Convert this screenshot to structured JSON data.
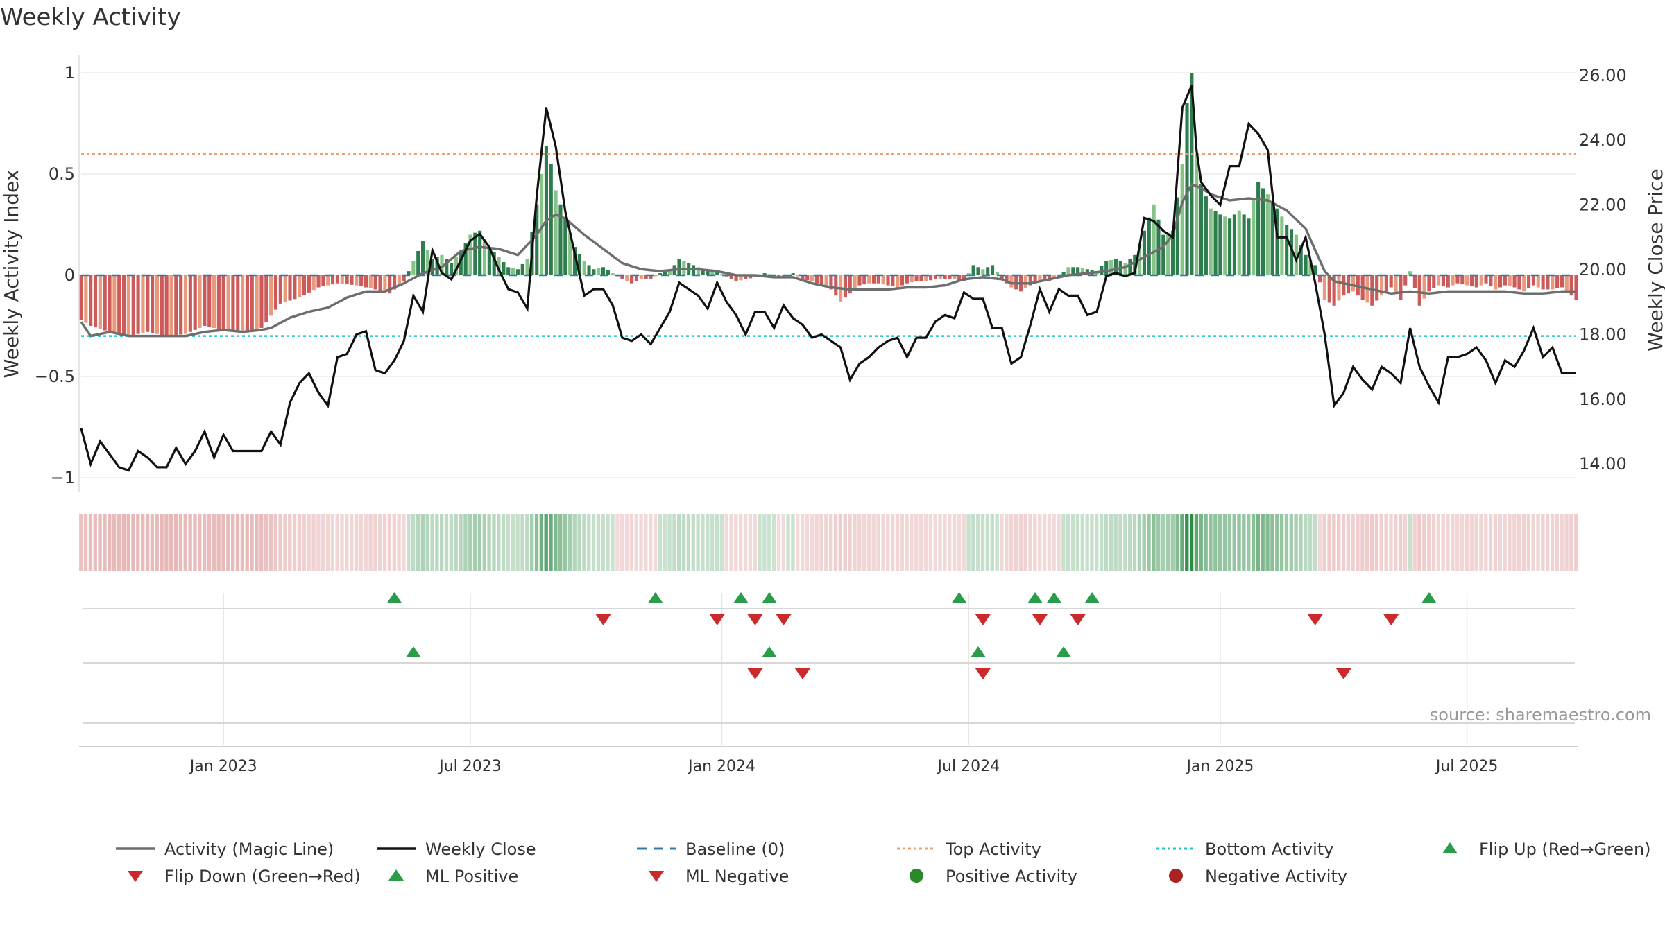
{
  "chart_data": {
    "type": "bar",
    "title": "Weekly Activity",
    "ylabel_left": "Weekly Activity Index",
    "ylabel_right": "Weekly Close Price",
    "source": "source: sharemaestro.com",
    "ylim_left": [
      -1.1,
      1.1
    ],
    "ylim_right": [
      13.0,
      26.5
    ],
    "y_ticks_left": [
      "1",
      "0.5",
      "0",
      "−0.5",
      "−1"
    ],
    "y_ticks_right": [
      "26.00",
      "24.00",
      "22.00",
      "20.00",
      "18.00",
      "16.00",
      "14.00"
    ],
    "x_ticks": [
      {
        "label": "Jan 2023",
        "week": 30
      },
      {
        "label": "Jul 2023",
        "week": 82
      },
      {
        "label": "Jan 2024",
        "week": 135
      },
      {
        "label": "Jul 2024",
        "week": 187
      },
      {
        "label": "Jan 2025",
        "week": 240
      },
      {
        "label": "Jul 2025",
        "week": 292
      }
    ],
    "num_weeks": 316,
    "activity_keypoints": [
      [
        0,
        -0.22
      ],
      [
        2,
        -0.25
      ],
      [
        6,
        -0.28
      ],
      [
        10,
        -0.3
      ],
      [
        14,
        -0.28
      ],
      [
        18,
        -0.3
      ],
      [
        22,
        -0.29
      ],
      [
        26,
        -0.25
      ],
      [
        30,
        -0.27
      ],
      [
        34,
        -0.28
      ],
      [
        38,
        -0.26
      ],
      [
        42,
        -0.14
      ],
      [
        46,
        -0.11
      ],
      [
        50,
        -0.06
      ],
      [
        54,
        -0.04
      ],
      [
        58,
        -0.05
      ],
      [
        62,
        -0.07
      ],
      [
        65,
        -0.09
      ],
      [
        68,
        -0.03
      ],
      [
        70,
        0.07
      ],
      [
        72,
        0.17
      ],
      [
        74,
        0.08
      ],
      [
        76,
        0.1
      ],
      [
        78,
        0.06
      ],
      [
        80,
        0.12
      ],
      [
        82,
        0.2
      ],
      [
        84,
        0.22
      ],
      [
        86,
        0.14
      ],
      [
        88,
        0.09
      ],
      [
        90,
        0.04
      ],
      [
        92,
        0.03
      ],
      [
        94,
        0.08
      ],
      [
        96,
        0.35
      ],
      [
        97,
        0.5
      ],
      [
        98,
        0.64
      ],
      [
        99,
        0.55
      ],
      [
        100,
        0.42
      ],
      [
        102,
        0.28
      ],
      [
        104,
        0.14
      ],
      [
        106,
        0.07
      ],
      [
        108,
        0.03
      ],
      [
        110,
        0.04
      ],
      [
        112,
        0.01
      ],
      [
        114,
        -0.02
      ],
      [
        116,
        -0.04
      ],
      [
        118,
        -0.02
      ],
      [
        120,
        -0.02
      ],
      [
        122,
        0.01
      ],
      [
        124,
        0.02
      ],
      [
        126,
        0.08
      ],
      [
        128,
        0.06
      ],
      [
        130,
        0.04
      ],
      [
        132,
        0.02
      ],
      [
        134,
        0.02
      ],
      [
        136,
        -0.01
      ],
      [
        138,
        -0.03
      ],
      [
        140,
        -0.02
      ],
      [
        142,
        -0.01
      ],
      [
        144,
        0.01
      ],
      [
        146,
        0.0
      ],
      [
        148,
        -0.01
      ],
      [
        150,
        0.01
      ],
      [
        152,
        -0.02
      ],
      [
        154,
        -0.03
      ],
      [
        156,
        -0.05
      ],
      [
        158,
        -0.07
      ],
      [
        160,
        -0.13
      ],
      [
        162,
        -0.09
      ],
      [
        164,
        -0.05
      ],
      [
        166,
        -0.04
      ],
      [
        168,
        -0.04
      ],
      [
        170,
        -0.05
      ],
      [
        172,
        -0.06
      ],
      [
        174,
        -0.04
      ],
      [
        176,
        -0.03
      ],
      [
        178,
        -0.03
      ],
      [
        180,
        -0.02
      ],
      [
        182,
        -0.02
      ],
      [
        184,
        -0.02
      ],
      [
        186,
        -0.03
      ],
      [
        188,
        0.05
      ],
      [
        190,
        0.03
      ],
      [
        192,
        0.05
      ],
      [
        194,
        -0.02
      ],
      [
        196,
        -0.06
      ],
      [
        198,
        -0.08
      ],
      [
        200,
        -0.05
      ],
      [
        202,
        -0.03
      ],
      [
        204,
        -0.03
      ],
      [
        206,
        -0.01
      ],
      [
        208,
        0.04
      ],
      [
        210,
        0.04
      ],
      [
        212,
        0.03
      ],
      [
        214,
        0.02
      ],
      [
        216,
        0.07
      ],
      [
        218,
        0.08
      ],
      [
        220,
        0.06
      ],
      [
        222,
        0.1
      ],
      [
        224,
        0.22
      ],
      [
        226,
        0.35
      ],
      [
        228,
        0.2
      ],
      [
        230,
        0.22
      ],
      [
        232,
        0.55
      ],
      [
        233,
        0.85
      ],
      [
        234,
        1.0
      ],
      [
        235,
        0.6
      ],
      [
        236,
        0.45
      ],
      [
        238,
        0.33
      ],
      [
        240,
        0.3
      ],
      [
        242,
        0.28
      ],
      [
        244,
        0.32
      ],
      [
        246,
        0.28
      ],
      [
        248,
        0.46
      ],
      [
        250,
        0.4
      ],
      [
        252,
        0.33
      ],
      [
        254,
        0.25
      ],
      [
        256,
        0.2
      ],
      [
        258,
        0.1
      ],
      [
        260,
        0.05
      ],
      [
        262,
        -0.12
      ],
      [
        264,
        -0.15
      ],
      [
        266,
        -0.1
      ],
      [
        268,
        -0.08
      ],
      [
        270,
        -0.12
      ],
      [
        272,
        -0.15
      ],
      [
        274,
        -0.1
      ],
      [
        276,
        -0.06
      ],
      [
        278,
        -0.12
      ],
      [
        280,
        0.02
      ],
      [
        282,
        -0.15
      ],
      [
        284,
        -0.08
      ],
      [
        286,
        -0.05
      ],
      [
        288,
        -0.06
      ],
      [
        290,
        -0.04
      ],
      [
        292,
        -0.05
      ],
      [
        294,
        -0.06
      ],
      [
        296,
        -0.04
      ],
      [
        298,
        -0.07
      ],
      [
        300,
        -0.05
      ],
      [
        302,
        -0.06
      ],
      [
        304,
        -0.08
      ],
      [
        306,
        -0.05
      ],
      [
        308,
        -0.07
      ],
      [
        310,
        -0.07
      ],
      [
        312,
        -0.06
      ],
      [
        315,
        -0.12
      ]
    ],
    "magic_line_keypoints": [
      [
        0,
        -0.23
      ],
      [
        2,
        -0.3
      ],
      [
        6,
        -0.28
      ],
      [
        10,
        -0.3
      ],
      [
        14,
        -0.3
      ],
      [
        18,
        -0.3
      ],
      [
        22,
        -0.3
      ],
      [
        26,
        -0.28
      ],
      [
        30,
        -0.27
      ],
      [
        34,
        -0.28
      ],
      [
        38,
        -0.27
      ],
      [
        40,
        -0.26
      ],
      [
        44,
        -0.21
      ],
      [
        48,
        -0.18
      ],
      [
        52,
        -0.16
      ],
      [
        56,
        -0.11
      ],
      [
        60,
        -0.08
      ],
      [
        64,
        -0.08
      ],
      [
        68,
        -0.04
      ],
      [
        72,
        0.01
      ],
      [
        76,
        0.04
      ],
      [
        80,
        0.12
      ],
      [
        84,
        0.14
      ],
      [
        88,
        0.13
      ],
      [
        92,
        0.1
      ],
      [
        96,
        0.2
      ],
      [
        98,
        0.27
      ],
      [
        100,
        0.3
      ],
      [
        102,
        0.28
      ],
      [
        106,
        0.2
      ],
      [
        110,
        0.13
      ],
      [
        114,
        0.06
      ],
      [
        118,
        0.03
      ],
      [
        122,
        0.02
      ],
      [
        126,
        0.03
      ],
      [
        130,
        0.03
      ],
      [
        134,
        0.02
      ],
      [
        138,
        0.0
      ],
      [
        142,
        0.0
      ],
      [
        146,
        -0.01
      ],
      [
        150,
        -0.01
      ],
      [
        154,
        -0.04
      ],
      [
        158,
        -0.06
      ],
      [
        162,
        -0.07
      ],
      [
        166,
        -0.07
      ],
      [
        170,
        -0.07
      ],
      [
        174,
        -0.06
      ],
      [
        178,
        -0.06
      ],
      [
        182,
        -0.05
      ],
      [
        186,
        -0.02
      ],
      [
        190,
        -0.01
      ],
      [
        194,
        -0.02
      ],
      [
        196,
        -0.04
      ],
      [
        200,
        -0.04
      ],
      [
        204,
        -0.02
      ],
      [
        208,
        0.0
      ],
      [
        212,
        0.01
      ],
      [
        216,
        0.02
      ],
      [
        220,
        0.04
      ],
      [
        224,
        0.09
      ],
      [
        228,
        0.14
      ],
      [
        230,
        0.2
      ],
      [
        232,
        0.36
      ],
      [
        234,
        0.45
      ],
      [
        236,
        0.43
      ],
      [
        238,
        0.4
      ],
      [
        242,
        0.37
      ],
      [
        246,
        0.38
      ],
      [
        250,
        0.37
      ],
      [
        254,
        0.32
      ],
      [
        258,
        0.23
      ],
      [
        262,
        0.02
      ],
      [
        264,
        -0.03
      ],
      [
        268,
        -0.05
      ],
      [
        272,
        -0.07
      ],
      [
        276,
        -0.09
      ],
      [
        280,
        -0.08
      ],
      [
        284,
        -0.09
      ],
      [
        288,
        -0.08
      ],
      [
        292,
        -0.08
      ],
      [
        296,
        -0.08
      ],
      [
        300,
        -0.08
      ],
      [
        304,
        -0.09
      ],
      [
        308,
        -0.09
      ],
      [
        312,
        -0.08
      ],
      [
        315,
        -0.08
      ]
    ],
    "close_keypoints": [
      [
        0,
        15.1
      ],
      [
        2,
        14.0
      ],
      [
        4,
        14.7
      ],
      [
        8,
        13.9
      ],
      [
        10,
        13.8
      ],
      [
        12,
        14.4
      ],
      [
        14,
        14.2
      ],
      [
        16,
        13.9
      ],
      [
        18,
        13.9
      ],
      [
        20,
        14.5
      ],
      [
        22,
        14.0
      ],
      [
        24,
        14.4
      ],
      [
        26,
        15.0
      ],
      [
        28,
        14.2
      ],
      [
        30,
        14.9
      ],
      [
        32,
        14.4
      ],
      [
        34,
        14.4
      ],
      [
        36,
        14.4
      ],
      [
        38,
        14.4
      ],
      [
        40,
        15.0
      ],
      [
        42,
        14.6
      ],
      [
        44,
        15.9
      ],
      [
        46,
        16.5
      ],
      [
        48,
        16.8
      ],
      [
        50,
        16.2
      ],
      [
        52,
        15.8
      ],
      [
        54,
        17.3
      ],
      [
        56,
        17.4
      ],
      [
        58,
        18.0
      ],
      [
        60,
        18.1
      ],
      [
        62,
        16.9
      ],
      [
        64,
        16.8
      ],
      [
        66,
        17.2
      ],
      [
        68,
        17.8
      ],
      [
        70,
        19.2
      ],
      [
        72,
        18.7
      ],
      [
        74,
        20.6
      ],
      [
        76,
        19.9
      ],
      [
        78,
        19.7
      ],
      [
        80,
        20.3
      ],
      [
        82,
        20.9
      ],
      [
        84,
        21.1
      ],
      [
        86,
        20.7
      ],
      [
        88,
        20.0
      ],
      [
        90,
        19.4
      ],
      [
        92,
        19.3
      ],
      [
        94,
        18.8
      ],
      [
        96,
        22.3
      ],
      [
        98,
        25.0
      ],
      [
        100,
        23.8
      ],
      [
        102,
        21.8
      ],
      [
        104,
        20.5
      ],
      [
        106,
        19.2
      ],
      [
        108,
        19.4
      ],
      [
        110,
        19.4
      ],
      [
        112,
        18.9
      ],
      [
        114,
        17.9
      ],
      [
        116,
        17.8
      ],
      [
        118,
        18.0
      ],
      [
        120,
        17.7
      ],
      [
        122,
        18.2
      ],
      [
        124,
        18.7
      ],
      [
        126,
        19.6
      ],
      [
        128,
        19.4
      ],
      [
        130,
        19.2
      ],
      [
        132,
        18.8
      ],
      [
        134,
        19.6
      ],
      [
        136,
        19.0
      ],
      [
        138,
        18.6
      ],
      [
        140,
        18.0
      ],
      [
        142,
        18.7
      ],
      [
        144,
        18.7
      ],
      [
        146,
        18.2
      ],
      [
        148,
        18.9
      ],
      [
        150,
        18.5
      ],
      [
        152,
        18.3
      ],
      [
        154,
        17.9
      ],
      [
        156,
        18.0
      ],
      [
        158,
        17.8
      ],
      [
        160,
        17.6
      ],
      [
        162,
        16.6
      ],
      [
        164,
        17.1
      ],
      [
        166,
        17.3
      ],
      [
        168,
        17.6
      ],
      [
        170,
        17.8
      ],
      [
        172,
        17.9
      ],
      [
        174,
        17.3
      ],
      [
        176,
        17.9
      ],
      [
        178,
        17.9
      ],
      [
        180,
        18.4
      ],
      [
        182,
        18.6
      ],
      [
        184,
        18.5
      ],
      [
        186,
        19.3
      ],
      [
        188,
        19.1
      ],
      [
        190,
        19.1
      ],
      [
        192,
        18.2
      ],
      [
        194,
        18.2
      ],
      [
        196,
        17.1
      ],
      [
        198,
        17.3
      ],
      [
        200,
        18.3
      ],
      [
        202,
        19.4
      ],
      [
        204,
        18.7
      ],
      [
        206,
        19.4
      ],
      [
        208,
        19.2
      ],
      [
        210,
        19.2
      ],
      [
        212,
        18.6
      ],
      [
        214,
        18.7
      ],
      [
        216,
        19.8
      ],
      [
        218,
        19.9
      ],
      [
        220,
        19.8
      ],
      [
        222,
        19.9
      ],
      [
        224,
        21.6
      ],
      [
        226,
        21.5
      ],
      [
        228,
        21.2
      ],
      [
        230,
        21.0
      ],
      [
        232,
        25.0
      ],
      [
        234,
        25.7
      ],
      [
        235,
        23.7
      ],
      [
        236,
        22.7
      ],
      [
        238,
        22.3
      ],
      [
        240,
        22.0
      ],
      [
        242,
        23.2
      ],
      [
        244,
        23.2
      ],
      [
        246,
        24.5
      ],
      [
        248,
        24.2
      ],
      [
        250,
        23.7
      ],
      [
        252,
        21.0
      ],
      [
        254,
        21.0
      ],
      [
        256,
        20.3
      ],
      [
        258,
        21.0
      ],
      [
        260,
        19.6
      ],
      [
        262,
        18.0
      ],
      [
        264,
        15.8
      ],
      [
        266,
        16.2
      ],
      [
        268,
        17.0
      ],
      [
        270,
        16.6
      ],
      [
        272,
        16.3
      ],
      [
        274,
        17.0
      ],
      [
        276,
        16.8
      ],
      [
        278,
        16.5
      ],
      [
        280,
        18.2
      ],
      [
        282,
        17.0
      ],
      [
        284,
        16.4
      ],
      [
        286,
        15.9
      ],
      [
        288,
        17.3
      ],
      [
        290,
        17.3
      ],
      [
        292,
        17.4
      ],
      [
        294,
        17.6
      ],
      [
        296,
        17.2
      ],
      [
        298,
        16.5
      ],
      [
        300,
        17.2
      ],
      [
        302,
        17.0
      ],
      [
        304,
        17.5
      ],
      [
        306,
        18.2
      ],
      [
        308,
        17.3
      ],
      [
        310,
        17.6
      ],
      [
        312,
        16.8
      ]
    ],
    "thresholds": {
      "top": 0.6,
      "bottom": -0.3,
      "baseline": 0
    },
    "flip_up_weeks": [
      66,
      121,
      139,
      145,
      185,
      201,
      205,
      213,
      284
    ],
    "flip_down_weeks": [
      110,
      134,
      142,
      148,
      190,
      202,
      210,
      260,
      276
    ],
    "ml_positive_weeks": [
      70,
      145,
      189,
      207
    ],
    "ml_negative_weeks": [
      142,
      152,
      190,
      266
    ],
    "legend": [
      {
        "label": "Activity (Magic Line)",
        "marker": "line-gray"
      },
      {
        "label": "Weekly Close",
        "marker": "line-black"
      },
      {
        "label": "Baseline (0)",
        "marker": "line-blue-dashed"
      },
      {
        "label": "Top Activity",
        "marker": "line-orange-dotted"
      },
      {
        "label": "Bottom Activity",
        "marker": "line-cyan-dotted"
      },
      {
        "label": "Flip Up (Red→Green)",
        "marker": "triangle-up-green"
      },
      {
        "label": "Flip Down (Green→Red)",
        "marker": "triangle-down-red"
      },
      {
        "label": "ML Positive",
        "marker": "triangle-up-green"
      },
      {
        "label": "ML Negative",
        "marker": "triangle-down-red"
      },
      {
        "label": "Positive Activity",
        "marker": "circle-green"
      },
      {
        "label": "Negative Activity",
        "marker": "circle-red"
      }
    ],
    "colors": {
      "pos_strong": "#2e7d4f",
      "pos_light": "#86c386",
      "neg_strong": "#cc5a5a",
      "neg_light": "#e89a7a",
      "magic_line": "#6e6e6e",
      "close": "#111111",
      "baseline": "#2c7bb6",
      "top": "#f0a070",
      "bottom": "#22c5c5",
      "flip_up": "#2a9d4a",
      "flip_down": "#cc2a2a",
      "pos_dot": "#2a8a2a",
      "neg_dot": "#aa2222"
    }
  }
}
